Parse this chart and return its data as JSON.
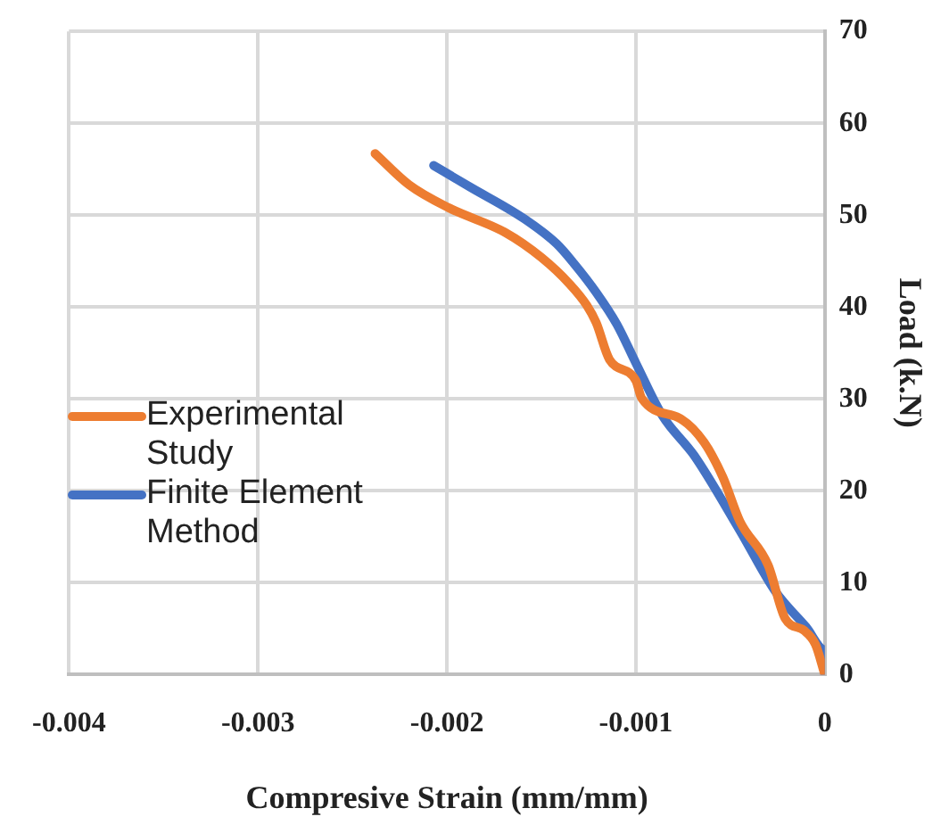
{
  "chart_data": {
    "type": "line",
    "xlabel": "Compresive Strain (mm/mm)",
    "ylabel": "Load (k.N)",
    "xlim": [
      -0.004,
      0
    ],
    "xticks": [
      -0.004,
      -0.003,
      -0.002,
      -0.001,
      0
    ],
    "ylim": [
      0,
      70
    ],
    "yticks": [
      0,
      10,
      20,
      30,
      40,
      50,
      60,
      70
    ],
    "grid": true,
    "legend": "left",
    "marker": "none",
    "line_style": "solid",
    "series": [
      {
        "name": "Experimental Study",
        "color": "#ed7d31",
        "x": [
          -0.00238,
          -0.0022,
          -0.00199,
          -0.00169,
          -0.0015,
          -0.00135,
          -0.00126,
          -0.00121,
          -0.00114,
          -0.001,
          -0.00097,
          -0.00076,
          -0.00064,
          -0.00054,
          -0.00045,
          -0.0003,
          -0.00021,
          -0.00011,
          -5e-05,
          0
        ],
        "values": [
          56.7,
          53.3,
          50.8,
          48.1,
          45.4,
          42.5,
          40.2,
          38.3,
          34.3,
          32,
          30.1,
          27.8,
          25.3,
          21.5,
          16.7,
          11.9,
          6.1,
          4.8,
          3.3,
          0
        ]
      },
      {
        "name": "Finite Element Method",
        "color": "#4472c4",
        "x": [
          -0.00207,
          -0.00188,
          -0.00159,
          -0.00142,
          -0.00133,
          -0.00121,
          -0.0011,
          -0.001,
          -0.00086,
          -0.00069,
          -0.00045,
          -0.00026,
          -0.0001,
          0,
          0
        ],
        "values": [
          55.4,
          53.1,
          49.6,
          46.9,
          44.8,
          41.6,
          38.1,
          33.9,
          28.2,
          23.8,
          15.7,
          9,
          5.2,
          2.7,
          0
        ]
      }
    ]
  }
}
